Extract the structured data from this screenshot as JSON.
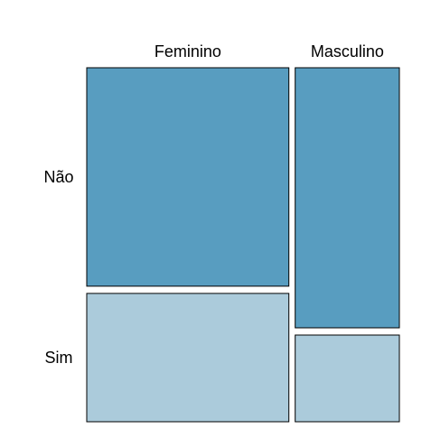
{
  "chart_data": {
    "type": "mosaic",
    "title": "",
    "xlabel": "",
    "ylabel": "",
    "columns": [
      "Feminino",
      "Masculino"
    ],
    "rows": [
      "Não",
      "Sim"
    ],
    "column_proportions": [
      0.66,
      0.34
    ],
    "row_proportions_within_column": [
      [
        0.63,
        0.37
      ],
      [
        0.75,
        0.25
      ]
    ],
    "row_colors": [
      "#589dc0",
      "#abcbdb"
    ]
  }
}
